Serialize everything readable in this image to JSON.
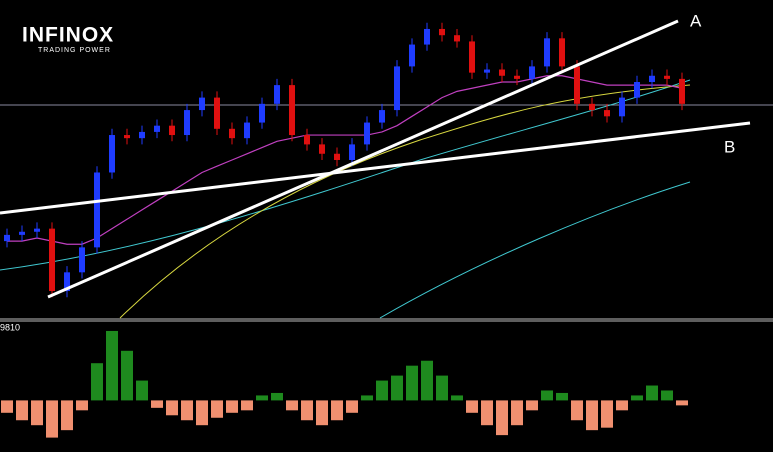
{
  "header": {
    "logo": "INFINOX",
    "tagline": "TRADING POWER"
  },
  "chart_data": [
    {
      "type": "candlestick",
      "open": [
        24,
        26,
        27,
        28,
        8,
        14,
        22,
        46,
        58,
        57,
        59,
        61,
        58,
        66,
        70,
        60,
        57,
        62,
        68,
        74,
        58,
        55,
        52,
        50,
        55,
        62,
        66,
        80,
        87,
        92,
        90,
        88,
        78,
        79,
        77,
        76,
        80,
        89,
        80,
        68,
        66,
        64,
        70,
        75,
        77,
        76
      ],
      "high": [
        28,
        29,
        30,
        30,
        16,
        24,
        48,
        60,
        60,
        61,
        63,
        63,
        68,
        72,
        72,
        62,
        64,
        70,
        76,
        76,
        60,
        57,
        54,
        57,
        64,
        68,
        82,
        89,
        94,
        94,
        92,
        90,
        81,
        81,
        79,
        82,
        91,
        91,
        82,
        70,
        68,
        72,
        77,
        79,
        79,
        78
      ],
      "low": [
        22,
        24,
        25,
        6,
        6,
        12,
        20,
        44,
        55,
        55,
        57,
        56,
        56,
        64,
        58,
        55,
        55,
        60,
        66,
        56,
        53,
        50,
        48,
        48,
        53,
        60,
        64,
        78,
        85,
        88,
        86,
        76,
        76,
        75,
        74,
        74,
        78,
        78,
        66,
        64,
        62,
        62,
        68,
        73,
        74,
        66
      ],
      "close": [
        26,
        27,
        28,
        8,
        14,
        22,
        46,
        58,
        57,
        59,
        61,
        58,
        66,
        70,
        60,
        57,
        62,
        68,
        74,
        58,
        55,
        52,
        50,
        55,
        62,
        66,
        80,
        87,
        92,
        90,
        88,
        78,
        79,
        77,
        76,
        80,
        89,
        80,
        68,
        66,
        64,
        70,
        75,
        77,
        76,
        68
      ],
      "ylim": [
        0,
        100
      ],
      "up_color": "#1f3cff",
      "down_color": "#e01010",
      "moving_average": {
        "color": "#c040c0",
        "values": [
          24,
          24,
          25,
          24,
          23,
          23,
          25,
          28,
          31,
          34,
          37,
          40,
          43,
          46,
          48,
          50,
          52,
          54,
          56,
          57,
          58,
          58,
          58,
          58,
          58,
          59,
          61,
          64,
          67,
          70,
          72,
          73,
          74,
          75,
          75,
          76,
          77,
          77,
          76,
          75,
          74,
          74,
          74,
          74,
          74,
          73
        ]
      },
      "annotations": [
        "A",
        "B"
      ]
    },
    {
      "type": "bar",
      "title": "9810",
      "values": [
        -5,
        -8,
        -10,
        -15,
        -12,
        -4,
        15,
        28,
        20,
        8,
        -3,
        -6,
        -8,
        -10,
        -7,
        -5,
        -4,
        2,
        3,
        -4,
        -8,
        -10,
        -8,
        -5,
        2,
        8,
        10,
        14,
        16,
        10,
        2,
        -5,
        -10,
        -14,
        -10,
        -4,
        4,
        3,
        -8,
        -12,
        -11,
        -4,
        2,
        6,
        4,
        -2
      ],
      "ylim": [
        -20,
        30
      ],
      "color": "#1e8a1e",
      "negative_color": "#f09070"
    }
  ]
}
